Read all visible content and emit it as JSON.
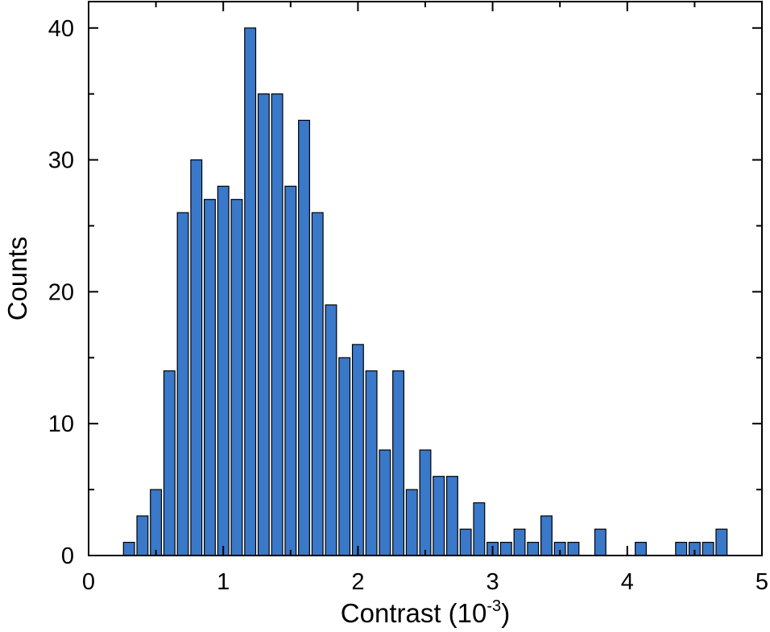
{
  "chart_data": {
    "type": "bar",
    "title": "",
    "xlabel": "Contrast (10",
    "xlabel_superscript": "-3",
    "xlabel_suffix": ")",
    "ylabel": "Counts",
    "xlim": [
      0,
      5
    ],
    "ylim": [
      0,
      42
    ],
    "x_ticks": [
      0,
      1,
      2,
      3,
      4,
      5
    ],
    "y_ticks": [
      0,
      10,
      20,
      30,
      40
    ],
    "x_tick_labels": [
      "0",
      "1",
      "2",
      "3",
      "4",
      "5"
    ],
    "y_tick_labels": [
      "0",
      "10",
      "20",
      "30",
      "40"
    ],
    "bin_width": 0.1,
    "x": [
      0.3,
      0.4,
      0.5,
      0.6,
      0.7,
      0.8,
      0.9,
      1.0,
      1.1,
      1.2,
      1.3,
      1.4,
      1.5,
      1.6,
      1.7,
      1.8,
      1.9,
      2.0,
      2.1,
      2.2,
      2.3,
      2.4,
      2.5,
      2.6,
      2.7,
      2.8,
      2.9,
      3.0,
      3.1,
      3.2,
      3.3,
      3.4,
      3.5,
      3.6,
      3.7,
      3.8,
      3.9,
      4.0,
      4.1,
      4.2,
      4.3,
      4.4,
      4.5,
      4.6,
      4.7
    ],
    "values": [
      1,
      3,
      5,
      14,
      26,
      30,
      27,
      28,
      27,
      40,
      35,
      35,
      28,
      33,
      26,
      19,
      15,
      16,
      14,
      8,
      14,
      5,
      8,
      6,
      6,
      2,
      4,
      1,
      1,
      2,
      1,
      3,
      1,
      1,
      0,
      2,
      0,
      0,
      1,
      0,
      0,
      1,
      1,
      1,
      2
    ],
    "bar_color": "#3a78c9",
    "bar_edge_color": "#000000",
    "grid": false,
    "legend": "none"
  }
}
